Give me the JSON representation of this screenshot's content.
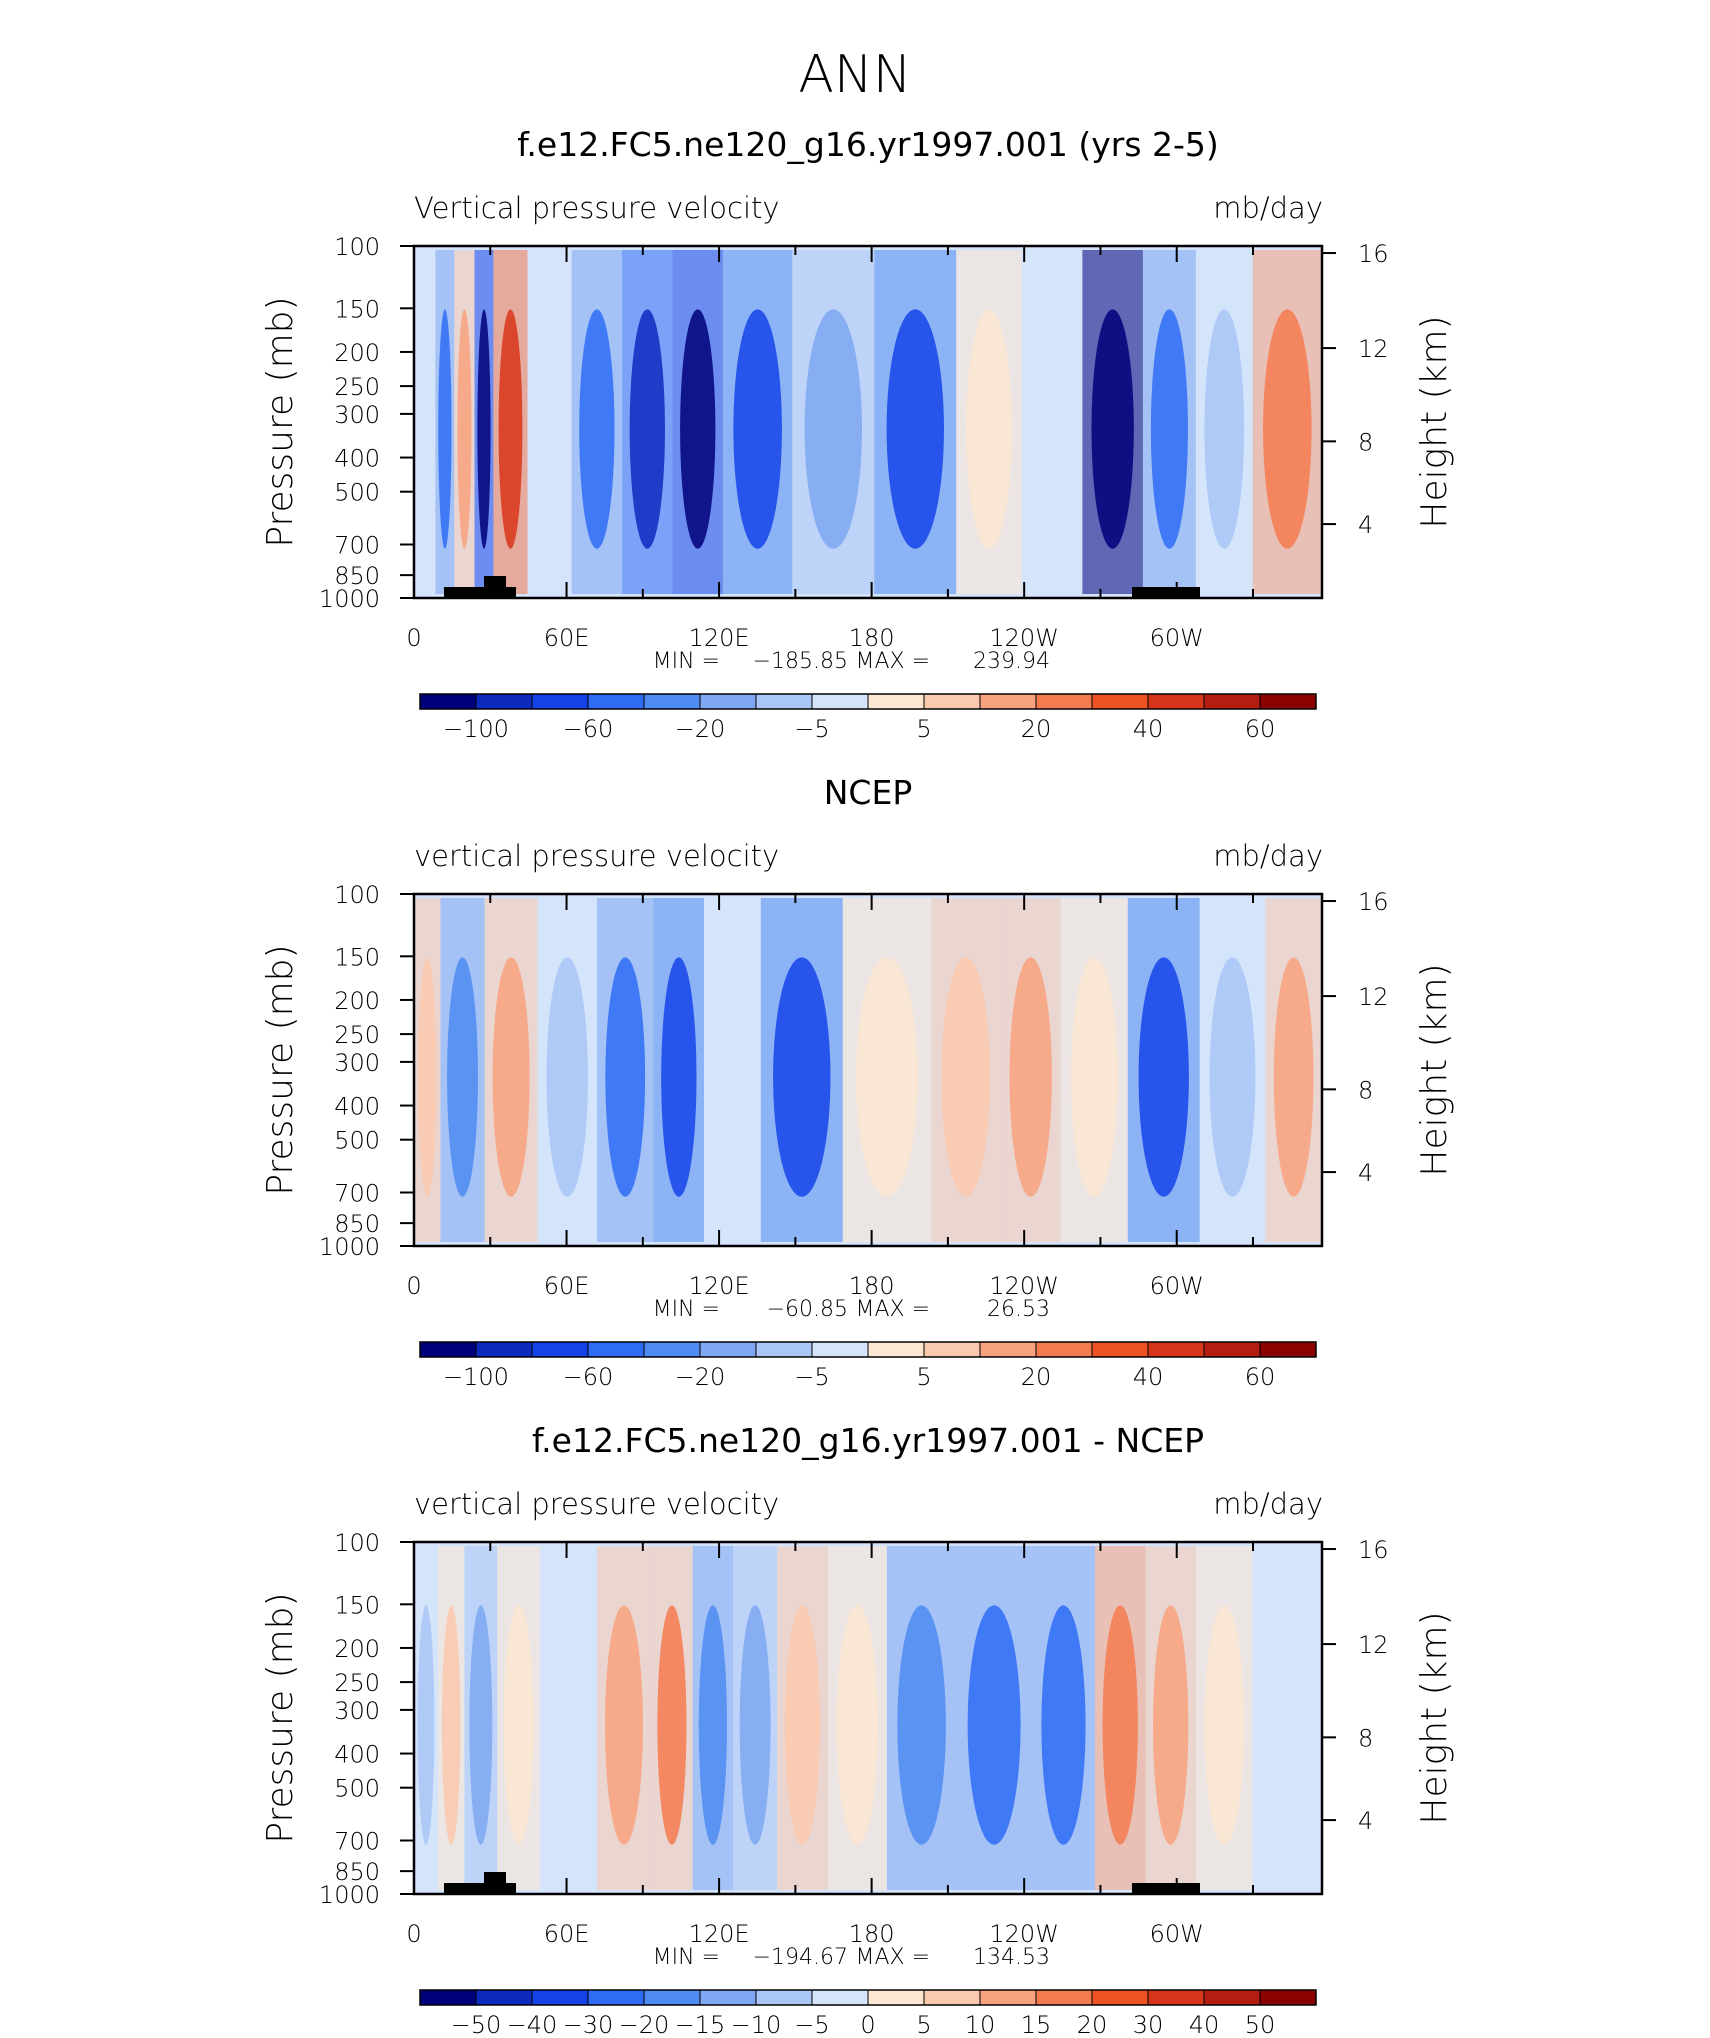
{
  "page_title": "ANN",
  "chart_data": [
    {
      "type": "heatmap",
      "title": "f.e12.FC5.ne120_g16.yr1997.001 (yrs 2-5)",
      "left_label": "Vertical pressure velocity",
      "right_label": "mb/day",
      "ylabel": "Pressure (mb)",
      "y2label": "Height (km)",
      "pressure_ticks": [
        "100",
        "150",
        "200",
        "250",
        "300",
        "400",
        "500",
        "700",
        "850",
        "1000"
      ],
      "height_ticks": [
        "16",
        "12",
        "8",
        "4"
      ],
      "lon_ticks": [
        "0",
        "60E",
        "120E",
        "180",
        "120W",
        "60W"
      ],
      "stats": {
        "min_label": "MIN =",
        "min": "−185.85",
        "max_label": "MAX =",
        "max": "239.94"
      },
      "colorbar_labels": [
        "−100",
        "−60",
        "−20",
        "−5",
        "5",
        "20",
        "40",
        "60"
      ],
      "colorbar_colors": [
        "#00007a",
        "#0d2abf",
        "#1543e8",
        "#2e6cf5",
        "#4e8bf2",
        "#7ea6f2",
        "#a9c6f6",
        "#d4e4fb",
        "#fde6d2",
        "#fbc9ad",
        "#f8a27e",
        "#f47a50",
        "#ee5326",
        "#d8361a",
        "#b31d12",
        "#8b0000"
      ],
      "series": [
        {
          "lon": 5,
          "value": -4
        },
        {
          "lon": 12,
          "value": -35
        },
        {
          "lon": 20,
          "value": 18
        },
        {
          "lon": 28,
          "value": -70
        },
        {
          "lon": 35,
          "value": 45
        },
        {
          "lon": 55,
          "value": -6
        },
        {
          "lon": 70,
          "value": -40
        },
        {
          "lon": 95,
          "value": -55
        },
        {
          "lon": 110,
          "value": -70
        },
        {
          "lon": 135,
          "value": -45
        },
        {
          "lon": 165,
          "value": -25
        },
        {
          "lon": 200,
          "value": -45
        },
        {
          "lon": 230,
          "value": 6
        },
        {
          "lon": 252,
          "value": -8
        },
        {
          "lon": 278,
          "value": -95
        },
        {
          "lon": 300,
          "value": -40
        },
        {
          "lon": 320,
          "value": -12
        },
        {
          "lon": 345,
          "value": 30
        }
      ]
    },
    {
      "type": "heatmap",
      "title": "NCEP",
      "left_label": "vertical pressure velocity",
      "right_label": "mb/day",
      "ylabel": "Pressure (mb)",
      "y2label": "Height (km)",
      "pressure_ticks": [
        "100",
        "150",
        "200",
        "250",
        "300",
        "400",
        "500",
        "700",
        "850",
        "1000"
      ],
      "height_ticks": [
        "16",
        "12",
        "8",
        "4"
      ],
      "lon_ticks": [
        "0",
        "60E",
        "120E",
        "180",
        "120W",
        "60W"
      ],
      "stats": {
        "min_label": "MIN =",
        "min": "−60.85",
        "max_label": "MAX =",
        "max": "26.53"
      },
      "colorbar_labels": [
        "−100",
        "−60",
        "−20",
        "−5",
        "5",
        "20",
        "40",
        "60"
      ],
      "colorbar_colors": [
        "#00007a",
        "#0d2abf",
        "#1543e8",
        "#2e6cf5",
        "#4e8bf2",
        "#7ea6f2",
        "#a9c6f6",
        "#d4e4fb",
        "#fde6d2",
        "#fbc9ad",
        "#f8a27e",
        "#f47a50",
        "#ee5326",
        "#d8361a",
        "#b31d12",
        "#8b0000"
      ],
      "series": [
        {
          "lon": 3,
          "value": 14
        },
        {
          "lon": 18,
          "value": -28
        },
        {
          "lon": 38,
          "value": 22
        },
        {
          "lon": 60,
          "value": -10
        },
        {
          "lon": 85,
          "value": -35
        },
        {
          "lon": 105,
          "value": -45
        },
        {
          "lon": 125,
          "value": -8
        },
        {
          "lon": 150,
          "value": -50
        },
        {
          "lon": 190,
          "value": 6
        },
        {
          "lon": 220,
          "value": 16
        },
        {
          "lon": 245,
          "value": 22
        },
        {
          "lon": 268,
          "value": 8
        },
        {
          "lon": 298,
          "value": -48
        },
        {
          "lon": 325,
          "value": -10
        },
        {
          "lon": 350,
          "value": 18
        }
      ]
    },
    {
      "type": "heatmap",
      "title": "f.e12.FC5.ne120_g16.yr1997.001 - NCEP",
      "left_label": "vertical pressure velocity",
      "right_label": "mb/day",
      "ylabel": "Pressure (mb)",
      "y2label": "Height (km)",
      "pressure_ticks": [
        "100",
        "150",
        "200",
        "250",
        "300",
        "400",
        "500",
        "700",
        "850",
        "1000"
      ],
      "height_ticks": [
        "16",
        "12",
        "8",
        "4"
      ],
      "lon_ticks": [
        "0",
        "60E",
        "120E",
        "180",
        "120W",
        "60W"
      ],
      "stats": {
        "min_label": "MIN =",
        "min": "−194.67",
        "max_label": "MAX =",
        "max": "134.53"
      },
      "colorbar_labels": [
        "−50",
        "−40",
        "−30",
        "−20",
        "−15",
        "−10",
        "−5",
        "0",
        "5",
        "10",
        "15",
        "20",
        "30",
        "40",
        "50"
      ],
      "colorbar_colors": [
        "#00007a",
        "#0d2abf",
        "#1543e8",
        "#2e6cf5",
        "#4e8bf2",
        "#7ea6f2",
        "#a9c6f6",
        "#d4e4fb",
        "#fde6d2",
        "#fbc9ad",
        "#f8a27e",
        "#f47a50",
        "#ee5326",
        "#d8361a",
        "#b31d12",
        "#8b0000"
      ],
      "series": [
        {
          "lon": 5,
          "value": -10
        },
        {
          "lon": 14,
          "value": 12
        },
        {
          "lon": 26,
          "value": -22
        },
        {
          "lon": 40,
          "value": 6
        },
        {
          "lon": 60,
          "value": -6
        },
        {
          "lon": 85,
          "value": 18
        },
        {
          "lon": 103,
          "value": 26
        },
        {
          "lon": 118,
          "value": -30
        },
        {
          "lon": 135,
          "value": -18
        },
        {
          "lon": 153,
          "value": 16
        },
        {
          "lon": 175,
          "value": 5
        },
        {
          "lon": 200,
          "value": -30
        },
        {
          "lon": 230,
          "value": -40
        },
        {
          "lon": 260,
          "value": -35
        },
        {
          "lon": 280,
          "value": 28
        },
        {
          "lon": 300,
          "value": 24
        },
        {
          "lon": 320,
          "value": 6
        },
        {
          "lon": 345,
          "value": -4
        }
      ]
    }
  ]
}
